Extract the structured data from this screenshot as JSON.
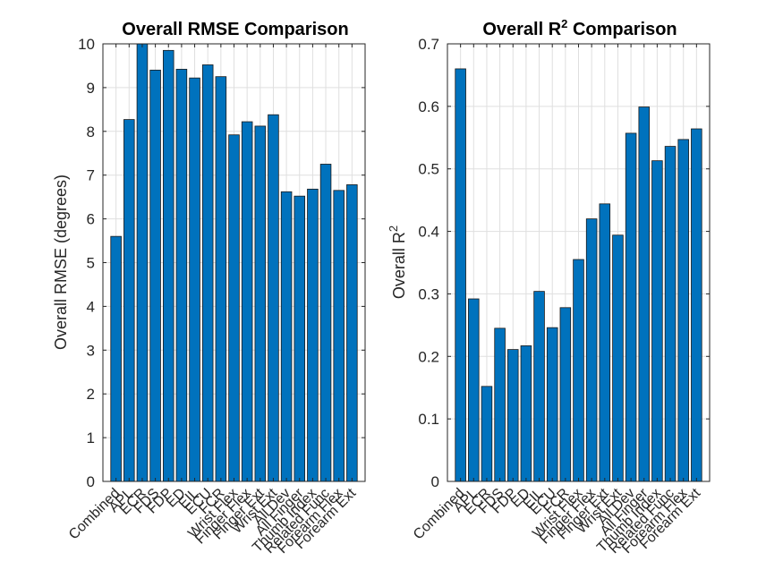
{
  "chart_data": [
    {
      "type": "bar",
      "title": "Overall RMSE Comparison",
      "xlabel": "",
      "ylabel": "Overall RMSE (degrees)",
      "ylim": [
        0,
        10
      ],
      "yticks": [
        0,
        1,
        2,
        3,
        4,
        5,
        6,
        7,
        8,
        9,
        10
      ],
      "grid": true,
      "bar_color": "#0072BD",
      "categories": [
        "Combined",
        "APL",
        "ECR",
        "FDS",
        "FDP",
        "ED",
        "EIL",
        "ECU",
        "FCR",
        "Wrist Flex",
        "Finger Flex",
        "Finger Ext",
        "Wrist Ext",
        "All Dev",
        "All Finger",
        "Thumb Index",
        "Related Func",
        "Forearm Flex",
        "Forearm Ext"
      ],
      "values": [
        5.6,
        8.27,
        10.0,
        9.4,
        9.85,
        9.42,
        9.22,
        9.52,
        9.25,
        7.92,
        8.22,
        8.12,
        8.38,
        6.62,
        6.52,
        6.68,
        7.25,
        6.65,
        6.78
      ]
    },
    {
      "type": "bar",
      "title_main": "Overall R",
      "title_sup": "2",
      "title_rest": " Comparison",
      "xlabel": "",
      "ylabel_main": "Overall R",
      "ylabel_sup": "2",
      "ylim": [
        0,
        0.7
      ],
      "yticks": [
        0,
        0.1,
        0.2,
        0.3,
        0.4,
        0.5,
        0.6,
        0.7
      ],
      "grid": true,
      "bar_color": "#0072BD",
      "categories": [
        "Combined",
        "APL",
        "ECR",
        "FDS",
        "FDP",
        "ED",
        "EIL",
        "ECU",
        "FCR",
        "Wrist Flex",
        "Finger Flex",
        "Finger Ext",
        "Wrist Ext",
        "All Dev",
        "All Finger",
        "Thumb Index",
        "Related Func",
        "Forearm Flex",
        "Forearm Ext"
      ],
      "values": [
        0.66,
        0.292,
        0.152,
        0.245,
        0.211,
        0.217,
        0.304,
        0.246,
        0.278,
        0.355,
        0.42,
        0.444,
        0.394,
        0.557,
        0.599,
        0.513,
        0.536,
        0.547,
        0.564
      ]
    }
  ]
}
